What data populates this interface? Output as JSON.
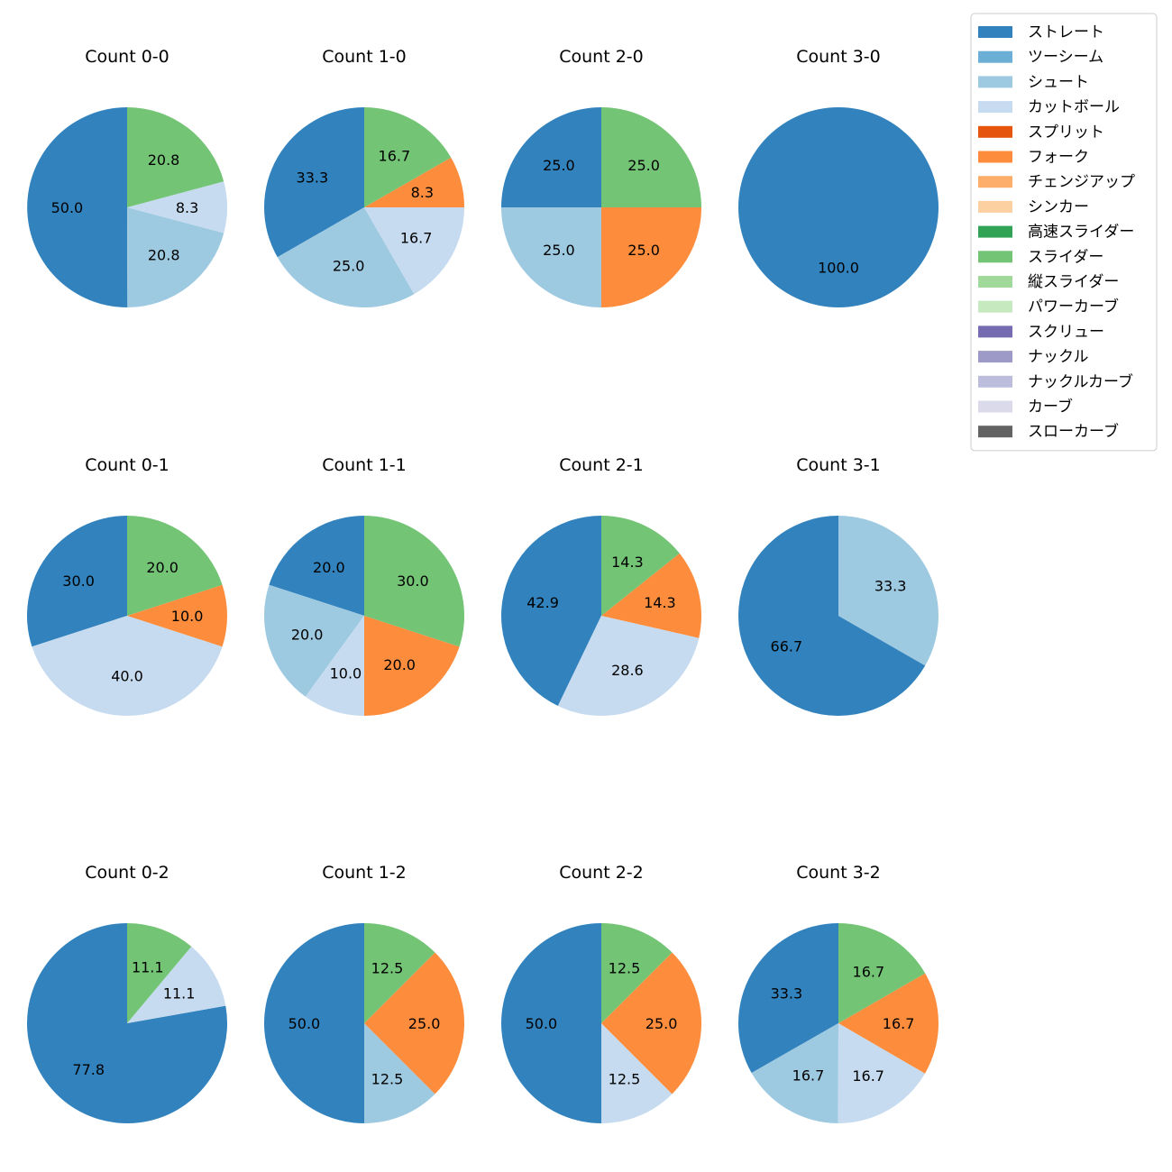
{
  "chart_data": {
    "type": "pie",
    "legend": {
      "location": "top-right",
      "entries": [
        {
          "name": "ストレート",
          "color": "#3182bd"
        },
        {
          "name": "ツーシーム",
          "color": "#6baed6"
        },
        {
          "name": "シュート",
          "color": "#9ecae1"
        },
        {
          "name": "カットボール",
          "color": "#c6dbef"
        },
        {
          "name": "スプリット",
          "color": "#e6550d"
        },
        {
          "name": "フォーク",
          "color": "#fd8d3c"
        },
        {
          "name": "チェンジアップ",
          "color": "#fdae6b"
        },
        {
          "name": "シンカー",
          "color": "#fdd0a2"
        },
        {
          "name": "高速スライダー",
          "color": "#31a354"
        },
        {
          "name": "スライダー",
          "color": "#74c476"
        },
        {
          "name": "縦スライダー",
          "color": "#a1d99b"
        },
        {
          "name": "パワーカーブ",
          "color": "#c7e9c0"
        },
        {
          "name": "スクリュー",
          "color": "#756bb1"
        },
        {
          "name": "ナックル",
          "color": "#9e9ac8"
        },
        {
          "name": "ナックルカーブ",
          "color": "#bcbddc"
        },
        {
          "name": "カーブ",
          "color": "#dadaeb"
        },
        {
          "name": "スローカーブ",
          "color": "#636363"
        }
      ]
    },
    "pies": [
      {
        "title": "Count 0-0",
        "slices": [
          {
            "pitch": "ストレート",
            "value": 50.0,
            "label": "50.0"
          },
          {
            "pitch": "シュート",
            "value": 20.8,
            "label": "20.8"
          },
          {
            "pitch": "カットボール",
            "value": 8.3,
            "label": "8.3"
          },
          {
            "pitch": "スライダー",
            "value": 20.8,
            "label": "20.8"
          }
        ]
      },
      {
        "title": "Count 1-0",
        "slices": [
          {
            "pitch": "ストレート",
            "value": 33.3,
            "label": "33.3"
          },
          {
            "pitch": "シュート",
            "value": 25.0,
            "label": "25.0"
          },
          {
            "pitch": "カットボール",
            "value": 16.7,
            "label": "16.7"
          },
          {
            "pitch": "フォーク",
            "value": 8.3,
            "label": "8.3"
          },
          {
            "pitch": "スライダー",
            "value": 16.7,
            "label": "16.7"
          }
        ]
      },
      {
        "title": "Count 2-0",
        "slices": [
          {
            "pitch": "ストレート",
            "value": 25.0,
            "label": "25.0"
          },
          {
            "pitch": "シュート",
            "value": 25.0,
            "label": "25.0"
          },
          {
            "pitch": "フォーク",
            "value": 25.0,
            "label": "25.0"
          },
          {
            "pitch": "スライダー",
            "value": 25.0,
            "label": "25.0"
          }
        ]
      },
      {
        "title": "Count 3-0",
        "slices": [
          {
            "pitch": "ストレート",
            "value": 100.0,
            "label": "100.0"
          }
        ]
      },
      {
        "title": "Count 0-1",
        "slices": [
          {
            "pitch": "ストレート",
            "value": 30.0,
            "label": "30.0"
          },
          {
            "pitch": "カットボール",
            "value": 40.0,
            "label": "40.0"
          },
          {
            "pitch": "フォーク",
            "value": 10.0,
            "label": "10.0"
          },
          {
            "pitch": "スライダー",
            "value": 20.0,
            "label": "20.0"
          }
        ]
      },
      {
        "title": "Count 1-1",
        "slices": [
          {
            "pitch": "ストレート",
            "value": 20.0,
            "label": "20.0"
          },
          {
            "pitch": "シュート",
            "value": 20.0,
            "label": "20.0"
          },
          {
            "pitch": "カットボール",
            "value": 10.0,
            "label": "10.0"
          },
          {
            "pitch": "フォーク",
            "value": 20.0,
            "label": "20.0"
          },
          {
            "pitch": "スライダー",
            "value": 30.0,
            "label": "30.0"
          }
        ]
      },
      {
        "title": "Count 2-1",
        "slices": [
          {
            "pitch": "ストレート",
            "value": 42.9,
            "label": "42.9"
          },
          {
            "pitch": "カットボール",
            "value": 28.6,
            "label": "28.6"
          },
          {
            "pitch": "フォーク",
            "value": 14.3,
            "label": "14.3"
          },
          {
            "pitch": "スライダー",
            "value": 14.3,
            "label": "14.3"
          }
        ]
      },
      {
        "title": "Count 3-1",
        "slices": [
          {
            "pitch": "ストレート",
            "value": 66.7,
            "label": "66.7"
          },
          {
            "pitch": "シュート",
            "value": 33.3,
            "label": "33.3"
          }
        ]
      },
      {
        "title": "Count 0-2",
        "slices": [
          {
            "pitch": "ストレート",
            "value": 77.8,
            "label": "77.8"
          },
          {
            "pitch": "カットボール",
            "value": 11.1,
            "label": "11.1"
          },
          {
            "pitch": "スライダー",
            "value": 11.1,
            "label": "11.1"
          }
        ]
      },
      {
        "title": "Count 1-2",
        "slices": [
          {
            "pitch": "ストレート",
            "value": 50.0,
            "label": "50.0"
          },
          {
            "pitch": "シュート",
            "value": 12.5,
            "label": "12.5"
          },
          {
            "pitch": "フォーク",
            "value": 25.0,
            "label": "25.0"
          },
          {
            "pitch": "スライダー",
            "value": 12.5,
            "label": "12.5"
          }
        ]
      },
      {
        "title": "Count 2-2",
        "slices": [
          {
            "pitch": "ストレート",
            "value": 50.0,
            "label": "50.0"
          },
          {
            "pitch": "カットボール",
            "value": 12.5,
            "label": "12.5"
          },
          {
            "pitch": "フォーク",
            "value": 25.0,
            "label": "25.0"
          },
          {
            "pitch": "スライダー",
            "value": 12.5,
            "label": "12.5"
          }
        ]
      },
      {
        "title": "Count 3-2",
        "slices": [
          {
            "pitch": "ストレート",
            "value": 33.3,
            "label": "33.3"
          },
          {
            "pitch": "シュート",
            "value": 16.7,
            "label": "16.7"
          },
          {
            "pitch": "カットボール",
            "value": 16.7,
            "label": "16.7"
          },
          {
            "pitch": "フォーク",
            "value": 16.7,
            "label": "16.7"
          },
          {
            "pitch": "スライダー",
            "value": 16.7,
            "label": "16.7"
          }
        ]
      }
    ]
  }
}
